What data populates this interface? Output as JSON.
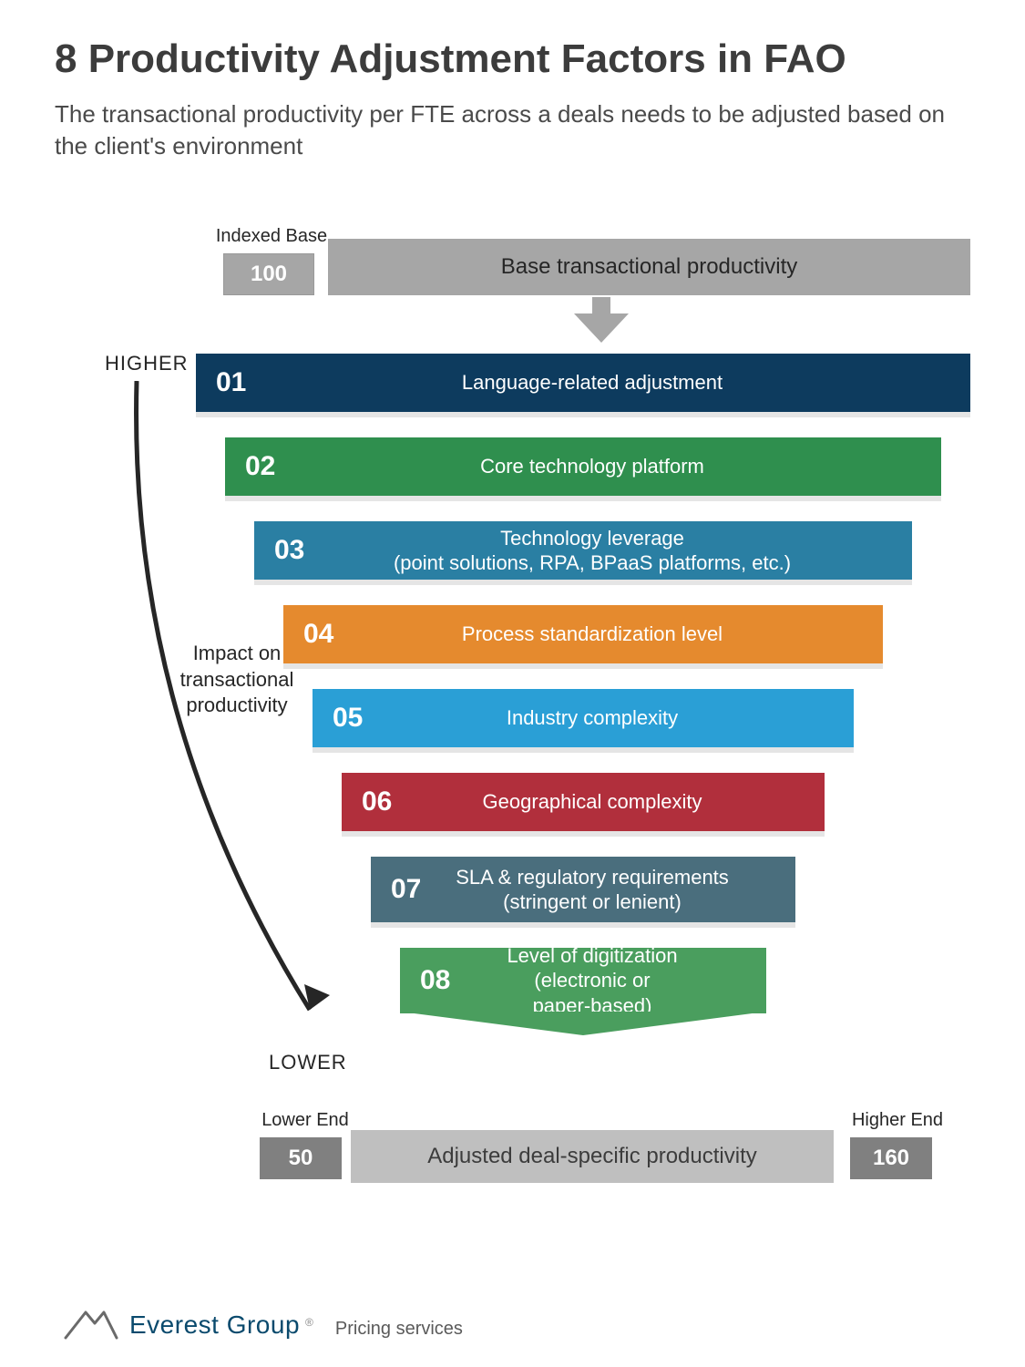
{
  "page": {
    "title": "8 Productivity Adjustment Factors in FAO",
    "subtitle": "The transactional productivity per FTE across a deals needs to be adjusted based on the client's environment"
  },
  "indexed": {
    "label": "Indexed Base",
    "value": "100"
  },
  "base_bar": {
    "label": "Base transactional productivity",
    "color": "#a6a6a6",
    "text_color": "#262626"
  },
  "arrow_color": "#a6a6a6",
  "side": {
    "higher": "HIGHER",
    "lower": "LOWER",
    "impact": "Impact on\ntransactional\nproductivity"
  },
  "funnel": {
    "gap": 28,
    "step_height": 64,
    "left_anchor": 155,
    "right_anchor": 1005,
    "shrink_left_per_step": 32,
    "shrink_right_per_step": 32,
    "label_fontsize": 22,
    "number_fontsize": 30
  },
  "steps": [
    {
      "n": "01",
      "label": "Language-related adjustment",
      "bg": "#0d3b5e"
    },
    {
      "n": "02",
      "label": "Core technology platform",
      "bg": "#2f8f4e"
    },
    {
      "n": "03",
      "label": "Technology leverage\n(point solutions, RPA, BPaaS platforms, etc.)",
      "bg": "#2a7fa3"
    },
    {
      "n": "04",
      "label": "Process standardization level",
      "bg": "#e58a2e"
    },
    {
      "n": "05",
      "label": "Industry complexity",
      "bg": "#2a9fd6"
    },
    {
      "n": "06",
      "label": "Geographical complexity",
      "bg": "#b12f3c"
    },
    {
      "n": "07",
      "label": "SLA & regulatory requirements\n(stringent or lenient)",
      "bg": "#4a6e7d"
    },
    {
      "n": "08",
      "label": "Level of digitization\n(electronic or\npaper-based)",
      "bg": "#4a9e5e"
    }
  ],
  "adjusted": {
    "bar_label": "Adjusted deal-specific productivity",
    "lower_end_label": "Lower End",
    "lower_end_value": "50",
    "higher_end_label": "Higher End",
    "higher_end_value": "160",
    "bar_color": "#bfbfbf",
    "badge_color": "#808080"
  },
  "logo": {
    "brand": "Everest Group",
    "reg": "®",
    "sub": "Pricing services",
    "mark_color": "#6a6a6a",
    "text_color": "#0a4a6d"
  },
  "badge_colors": {
    "idx_bg": "#a6a6a6",
    "idx_text": "#ffffff"
  }
}
